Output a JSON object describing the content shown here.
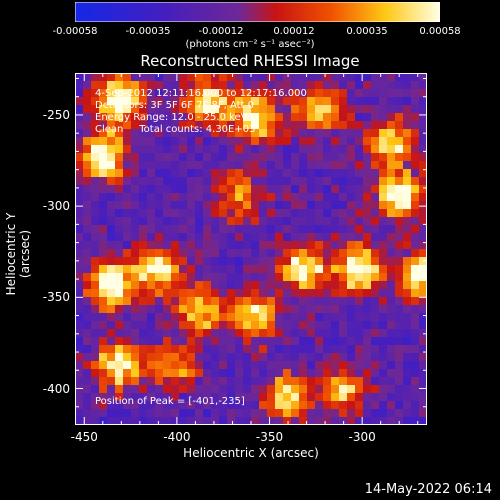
{
  "colorbar": {
    "ticks": [
      "-0.00058",
      "-0.00035",
      "-0.00012",
      "0.00012",
      "0.00035",
      "0.00058"
    ],
    "units": "(photons cm⁻² s⁻¹ asec⁻²)"
  },
  "annotations": {
    "time": "4-Sep-2012 12:11:16.000 to 12:17:16.000",
    "detectors": "Detectors: 3F 5F 6F 7F 8F, Att 0",
    "energy": "Energy Range: 12.0 - 25.0 keV",
    "method": "Clean     Total counts: 4.30E+03",
    "peak": "Position of Peak = [-401,-235]"
  },
  "footer": {
    "date": "14-May-2022 06:14"
  },
  "chart_data": {
    "type": "heatmap",
    "title": "Reconstructed RHESSI Image",
    "xlabel": "Heliocentric X (arcsec)",
    "ylabel": "Heliocentric Y (arcsec)",
    "xlim": [
      -455,
      -265
    ],
    "ylim": [
      -420,
      -227
    ],
    "xticks": [
      -450,
      -400,
      -350,
      -300
    ],
    "yticks": [
      -250,
      -300,
      -350,
      -400
    ],
    "color_range": [
      -0.00058,
      0.00058
    ],
    "peak": [
      -401,
      -235
    ]
  }
}
